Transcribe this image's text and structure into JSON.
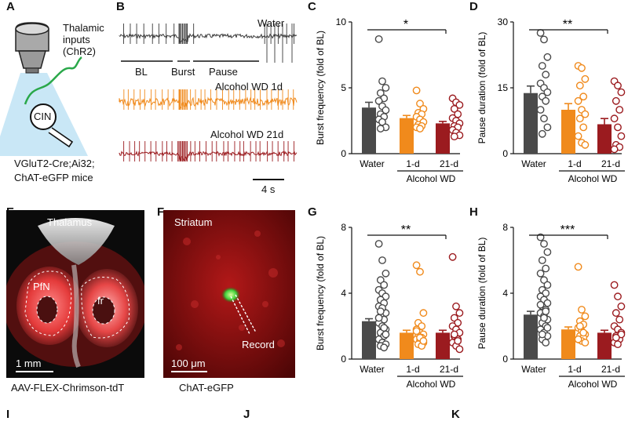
{
  "panel_letters": {
    "A": "A",
    "B": "B",
    "C": "C",
    "D": "D",
    "E": "E",
    "F": "F",
    "G": "G",
    "H": "H",
    "I": "I",
    "J": "J",
    "K": "K"
  },
  "panel_a": {
    "inputs_label": "Thalamic\ninputs\n(ChR2)",
    "cell_label": "CIN",
    "mouse_line_1": "VGluT2-Cre;Ai32;",
    "mouse_line_2": "ChAT-eGFP mice"
  },
  "panel_b": {
    "traces": [
      {
        "label": "Water",
        "color": "#3a3a3a"
      },
      {
        "label": "Alcohol WD 1d",
        "color": "#f08a1c"
      },
      {
        "label": "Alcohol WD 21d",
        "color": "#9b1b1f"
      }
    ],
    "segment_labels": [
      "BL",
      "Burst",
      "Pause"
    ],
    "scalebar": "4 s"
  },
  "panel_e": {
    "title": "Thalamus",
    "regions": [
      "PfN",
      "fr"
    ],
    "scalebar": "1 mm",
    "caption": "AAV-FLEX-Chrimson-tdT"
  },
  "panel_f": {
    "title": "Striatum",
    "record_label": "Record",
    "scalebar": "100 μm",
    "caption": "ChAT-eGFP"
  },
  "colors": {
    "water": "#4a4a4a",
    "wd1": "#f08a1c",
    "wd21": "#9b1b1f"
  },
  "chart_data": [
    {
      "panel": "C",
      "type": "bar",
      "title": "",
      "ylabel": "Burst frequency  (fold of BL)",
      "ylim": [
        0,
        10
      ],
      "yticks": [
        "0",
        "5",
        "10"
      ],
      "categories": [
        "Water",
        "1-d",
        "21-d"
      ],
      "group_label": "Alcohol WD",
      "significance": "*",
      "bars": [
        {
          "value": 3.5,
          "err": 0.4
        },
        {
          "value": 2.7,
          "err": 0.2
        },
        {
          "value": 2.3,
          "err": 0.15
        }
      ],
      "points": [
        [
          8.7,
          5.5,
          5.0,
          4.6,
          4.2,
          4.0,
          3.6,
          3.3,
          3.0,
          2.8,
          2.6,
          2.4,
          2.0,
          1.9
        ],
        [
          4.8,
          3.8,
          3.4,
          3.1,
          3.0,
          2.8,
          2.6,
          2.4,
          2.2,
          2.1,
          2.0,
          1.9
        ],
        [
          4.2,
          3.9,
          3.7,
          3.4,
          3.0,
          2.7,
          2.5,
          2.3,
          2.1,
          2.0,
          1.8,
          1.6,
          1.4,
          1.3
        ]
      ]
    },
    {
      "panel": "D",
      "type": "bar",
      "title": "",
      "ylabel": "Pause duration  (fold of BL)",
      "ylim": [
        0,
        30
      ],
      "yticks": [
        "0",
        "15",
        "30"
      ],
      "categories": [
        "Water",
        "1-d",
        "21-d"
      ],
      "group_label": "Alcohol WD",
      "significance": "**",
      "bars": [
        {
          "value": 13.8,
          "err": 1.6
        },
        {
          "value": 10.0,
          "err": 1.4
        },
        {
          "value": 6.7,
          "err": 1.3
        }
      ],
      "points": [
        [
          27.5,
          26.0,
          22.0,
          20.0,
          18.0,
          16.0,
          15.0,
          14.0,
          13.0,
          12.0,
          10.0,
          8.0,
          6.0,
          4.5
        ],
        [
          20.0,
          19.5,
          17.0,
          15.5,
          13.0,
          12.0,
          10.0,
          9.0,
          8.0,
          6.0,
          4.0,
          2.5,
          2.0
        ],
        [
          16.5,
          15.5,
          14.0,
          12.0,
          10.0,
          8.0,
          6.0,
          4.0,
          2.0,
          1.5,
          1.0
        ]
      ]
    },
    {
      "panel": "G",
      "type": "bar",
      "title": "",
      "ylabel": "Burst frequency  (fold of BL)",
      "ylim": [
        0,
        8
      ],
      "yticks": [
        "0",
        "4",
        "8"
      ],
      "categories": [
        "Water",
        "1-d",
        "21-d"
      ],
      "group_label": "Alcohol WD",
      "significance": "**",
      "bars": [
        {
          "value": 2.3,
          "err": 0.15
        },
        {
          "value": 1.6,
          "err": 0.15
        },
        {
          "value": 1.6,
          "err": 0.15
        }
      ],
      "points": [
        [
          7.0,
          6.0,
          5.2,
          4.8,
          4.5,
          4.2,
          4.0,
          3.8,
          3.6,
          3.4,
          3.2,
          3.0,
          2.8,
          2.6,
          2.4,
          2.2,
          2.0,
          1.8,
          1.6,
          1.4,
          1.2,
          1.0,
          0.9,
          0.8,
          0.7,
          2.5,
          3.1,
          1.5,
          2.9,
          1.9
        ],
        [
          5.7,
          5.3,
          2.8,
          2.2,
          2.0,
          1.8,
          1.6,
          1.5,
          1.4,
          1.3,
          1.2,
          1.1,
          1.0,
          0.9,
          0.8,
          1.7,
          1.3,
          1.1
        ],
        [
          6.2,
          3.2,
          2.8,
          2.5,
          2.2,
          2.0,
          1.8,
          1.6,
          1.4,
          1.2,
          1.0,
          0.8,
          0.6,
          1.5,
          1.1
        ]
      ]
    },
    {
      "panel": "H",
      "type": "bar",
      "title": "",
      "ylabel": "Pause duration  (fold of BL)",
      "ylim": [
        0,
        8
      ],
      "yticks": [
        "0",
        "4",
        "8"
      ],
      "categories": [
        "Water",
        "1-d",
        "21-d"
      ],
      "group_label": "Alcohol WD",
      "significance": "***",
      "bars": [
        {
          "value": 2.7,
          "err": 0.2
        },
        {
          "value": 1.8,
          "err": 0.15
        },
        {
          "value": 1.6,
          "err": 0.15
        }
      ],
      "points": [
        [
          7.4,
          7.0,
          6.5,
          6.0,
          5.5,
          5.2,
          4.8,
          4.5,
          4.2,
          4.0,
          3.8,
          3.6,
          3.4,
          3.2,
          3.0,
          2.8,
          2.6,
          2.4,
          2.2,
          2.0,
          1.8,
          1.6,
          1.4,
          1.2,
          1.0,
          3.3,
          2.5,
          1.9,
          1.5,
          2.9
        ],
        [
          5.6,
          3.0,
          2.6,
          2.3,
          2.1,
          1.9,
          1.7,
          1.5,
          1.4,
          1.3,
          1.2,
          1.1,
          1.0,
          2.0,
          1.6,
          1.2
        ],
        [
          4.5,
          3.8,
          3.2,
          2.8,
          2.4,
          2.0,
          1.8,
          1.6,
          1.4,
          1.2,
          1.0,
          0.9,
          1.5,
          1.3
        ]
      ]
    }
  ]
}
